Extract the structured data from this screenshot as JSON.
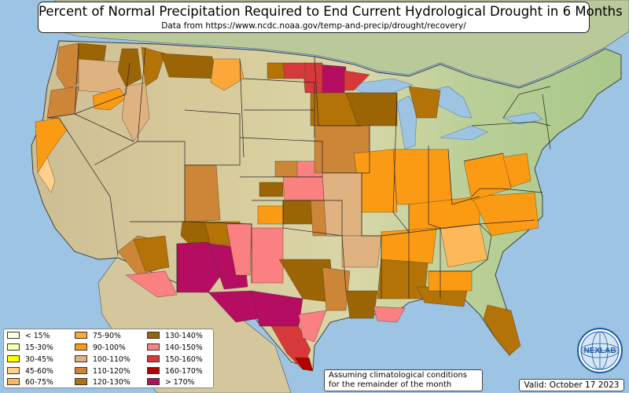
{
  "header": {
    "title": "Percent of Normal Precipitation Required to End Current Hydrological Drought in 6 Months",
    "subtitle": "Data from https://www.ncdc.noaa.gov/temp-and-precip/drought/recovery/"
  },
  "legend": {
    "items": [
      {
        "label": "< 15%",
        "color": "#ffffe8"
      },
      {
        "label": "15-30%",
        "color": "#ffffb0"
      },
      {
        "label": "30-45%",
        "color": "#ffff00"
      },
      {
        "label": "45-60%",
        "color": "#fdd08e"
      },
      {
        "label": "60-75%",
        "color": "#fdb85a"
      },
      {
        "label": "75-90%",
        "color": "#fca73a"
      },
      {
        "label": "90-100%",
        "color": "#fb9b14"
      },
      {
        "label": "100-110%",
        "color": "#dfb282"
      },
      {
        "label": "110-120%",
        "color": "#cd8537"
      },
      {
        "label": "120-130%",
        "color": "#b37306"
      },
      {
        "label": "130-140%",
        "color": "#9b6404"
      },
      {
        "label": "140-150%",
        "color": "#fb8082"
      },
      {
        "label": "150-160%",
        "color": "#d7393b"
      },
      {
        "label": "160-170%",
        "color": "#b00000"
      },
      {
        "label": "> 170%",
        "color": "#b50d62"
      }
    ]
  },
  "note": {
    "line1": "Assuming climatological conditions",
    "line2": "for the remainder of the month"
  },
  "valid": "Valid: October 17 2023",
  "logo": {
    "text": "NEXLAB",
    "icon": "globe-logo-icon"
  }
}
